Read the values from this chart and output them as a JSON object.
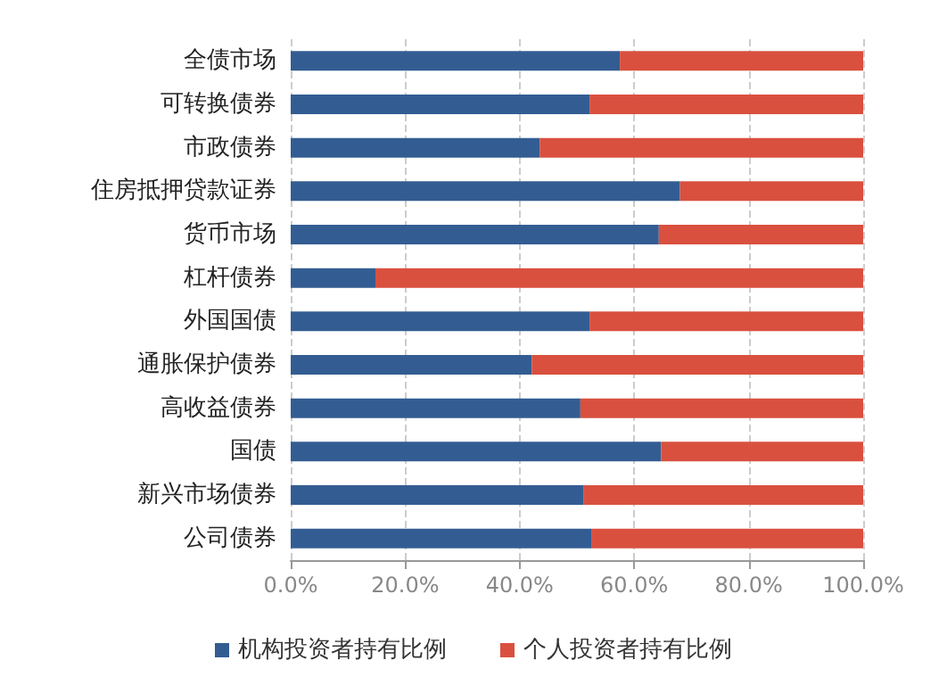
{
  "chart_data": {
    "type": "bar",
    "orientation": "horizontal",
    "stacked": true,
    "categories": [
      "全债市场",
      "可转换债券",
      "市政债券",
      "住房抵押贷款证券",
      "货币市场",
      "杠杆债券",
      "外国国债",
      "通胀保护债券",
      "高收益债券",
      "国债",
      "新兴市场债券",
      "公司债券"
    ],
    "series": [
      {
        "name": "机构投资者持有比例",
        "color": "#335d92",
        "values": [
          57.5,
          52.2,
          43.5,
          68.0,
          64.3,
          14.8,
          52.2,
          42.1,
          50.6,
          64.7,
          51.2,
          52.5
        ]
      },
      {
        "name": "个人投资者持有比例",
        "color": "#d9503f",
        "values": [
          42.5,
          47.8,
          56.5,
          32.0,
          35.7,
          85.2,
          47.8,
          57.9,
          49.4,
          35.3,
          48.8,
          47.5
        ]
      }
    ],
    "xlim": [
      0,
      100
    ],
    "xticks": [
      {
        "value": 0,
        "label": "0.0%"
      },
      {
        "value": 20,
        "label": "20.0%"
      },
      {
        "value": 40,
        "label": "40.0%"
      },
      {
        "value": 60,
        "label": "60.0%"
      },
      {
        "value": 80,
        "label": "80.0%"
      },
      {
        "value": 100,
        "label": "100.0%"
      }
    ],
    "grid": "x",
    "legend": "bottom"
  }
}
